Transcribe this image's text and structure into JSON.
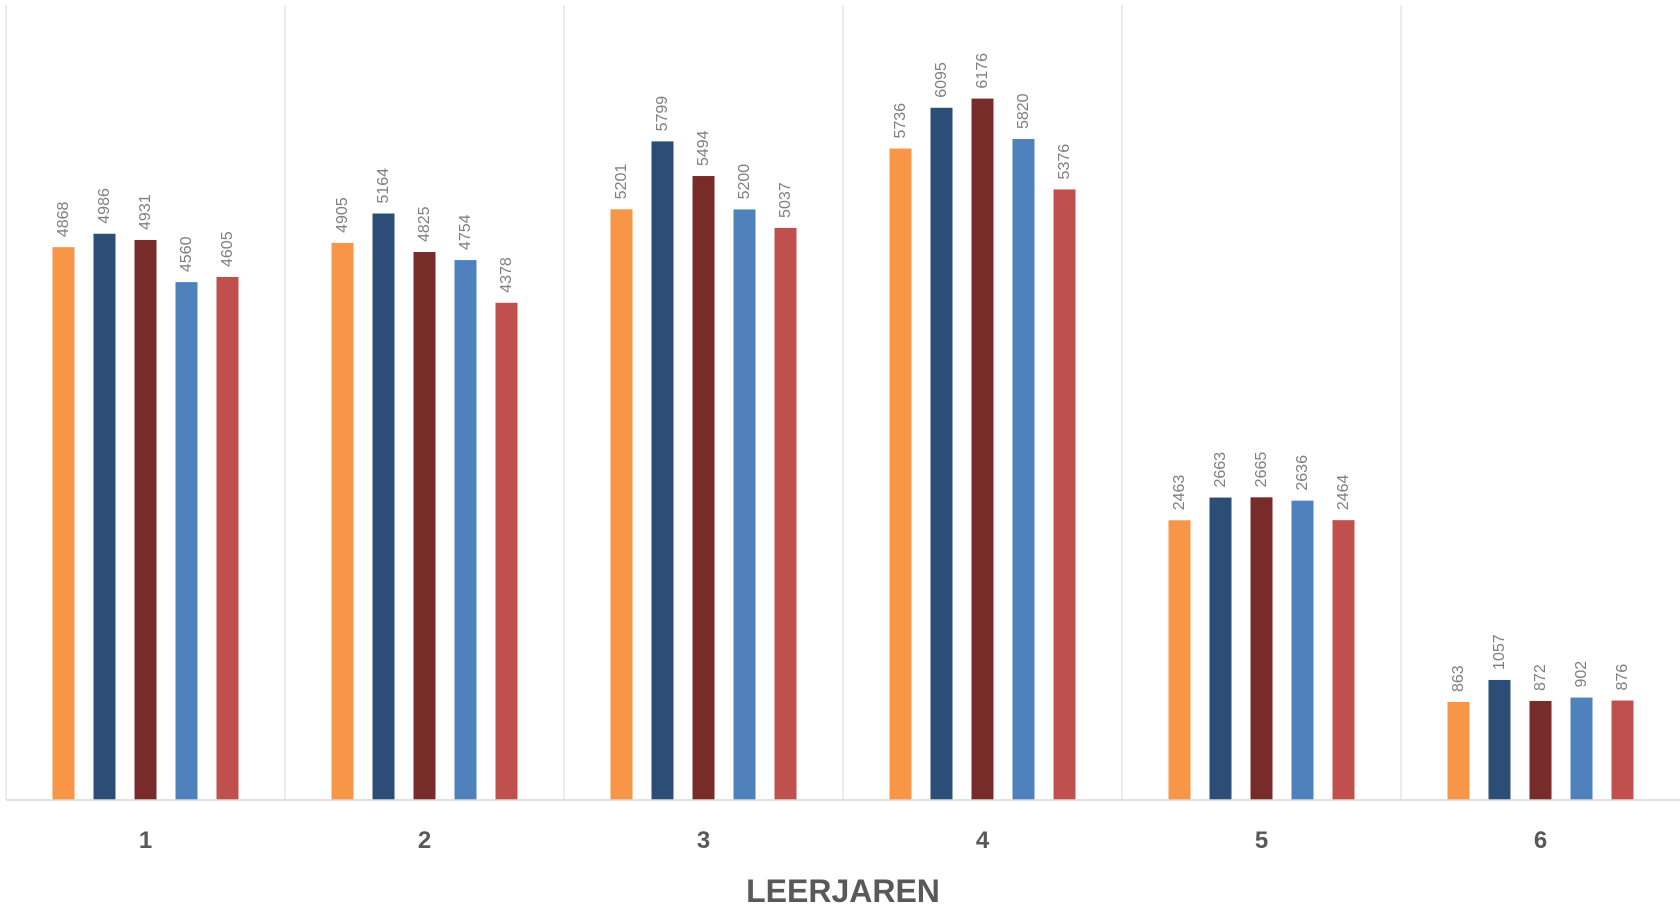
{
  "chart_data": {
    "type": "bar",
    "title": "",
    "xlabel": "LEERJAREN",
    "ylabel": "",
    "categories": [
      "1",
      "2",
      "3",
      "4",
      "5",
      "6"
    ],
    "ylim": [
      0,
      7000
    ],
    "grid": "vertical separators between categories",
    "legend": "none",
    "series": [
      {
        "color": "#F79646",
        "values": [
          4868,
          4905,
          5201,
          5736,
          2463,
          863
        ]
      },
      {
        "color": "#2C4D75",
        "values": [
          4986,
          5164,
          5799,
          6095,
          2663,
          1057
        ]
      },
      {
        "color": "#772C2A",
        "values": [
          4931,
          4825,
          5494,
          6176,
          2665,
          872
        ]
      },
      {
        "color": "#4F81BD",
        "values": [
          4560,
          4754,
          5200,
          5820,
          2636,
          902
        ]
      },
      {
        "color": "#C0504D",
        "values": [
          4605,
          4378,
          5037,
          5376,
          2464,
          876
        ]
      }
    ]
  }
}
